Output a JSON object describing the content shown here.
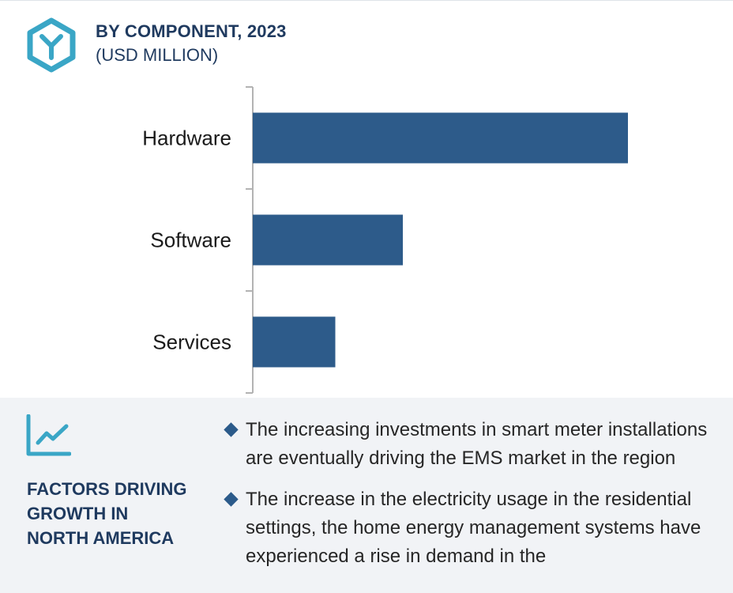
{
  "header": {
    "title": "BY COMPONENT, 2023",
    "subtitle": "(USD MILLION)",
    "logo_icon": "hexagon-y-logo-icon",
    "accent_color": "#3aa6c6"
  },
  "chart_data": {
    "type": "bar",
    "orientation": "horizontal",
    "categories": [
      "Hardware",
      "Software",
      "Services"
    ],
    "values": [
      100,
      40,
      22
    ],
    "value_note": "relative bar lengths (no values printed)",
    "bar_color": "#2d5b8a",
    "axis_color": "#b3b3b3",
    "grid": false,
    "legend": "none"
  },
  "factors": {
    "icon": "trend-line-chart-icon",
    "heading_lines": [
      "FACTORS DRIVING",
      "GROWTH IN",
      "NORTH AMERICA"
    ],
    "bullets": [
      "The increasing investments in smart meter installations are eventually driving the EMS market in the region",
      "The increase in the electricity usage in the residential settings, the home energy management systems have experienced a rise in demand in the"
    ]
  }
}
